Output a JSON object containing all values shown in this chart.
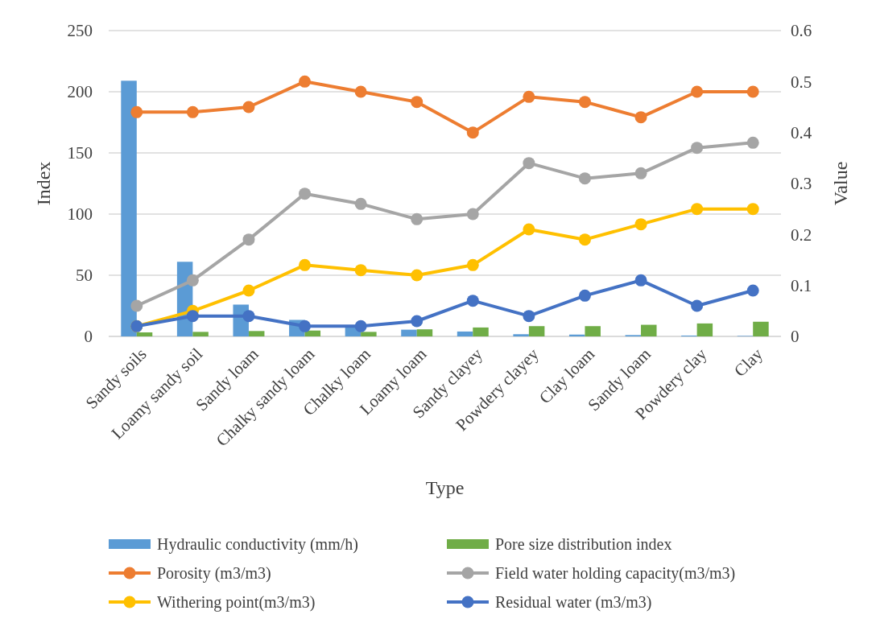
{
  "chart_data": {
    "type": "bar",
    "xlabel": "Type",
    "ylabel": "Index",
    "y2label": "Value",
    "categories": [
      "Sandy soils",
      "Loamy sandy soil",
      "Sandy loam",
      "Chalky sandy loam",
      "Chalky loam",
      "Loamy loam",
      "Sandy clayey",
      "Powdery clayey",
      "Clay loam",
      "Sandy loam",
      "Powdery clay",
      "Clay"
    ],
    "ylim": [
      0,
      250
    ],
    "yticks": [
      0,
      50,
      100,
      150,
      200,
      250
    ],
    "y2lim": [
      0,
      0.6
    ],
    "y2ticks": [
      {
        "value": 0,
        "label": "0"
      },
      {
        "value": 0.1,
        "label": "0.1"
      },
      {
        "value": 0.2,
        "label": "0.2"
      },
      {
        "value": 0.3,
        "label": "0.3"
      },
      {
        "value": 0.4,
        "label": "0.4"
      },
      {
        "value": 0.5,
        "label": "0.5"
      },
      {
        "value": 0.6,
        "label": "0.6"
      }
    ],
    "grid": "y",
    "legend": "bottom",
    "marker": "circle",
    "series": [
      {
        "name": "Hydraulic conductivity (mm/h)",
        "color": "#5b9bd5",
        "values": [
          209,
          61,
          26,
          13.5,
          8,
          5.5,
          4,
          1.8,
          1.5,
          1.1,
          0.7,
          0.4
        ]
      },
      {
        "name": "Pore size distribution index",
        "color": "#70ad47",
        "values": [
          3.3,
          3.7,
          4.4,
          4.8,
          3.7,
          5.8,
          7.3,
          8.4,
          8.4,
          9.5,
          10.6,
          12
        ]
      },
      {
        "name": "Porosity (m3/m3)",
        "type": "line",
        "axis": "y2",
        "color": "#ed7d31",
        "values": [
          0.44,
          0.44,
          0.45,
          0.5,
          0.48,
          0.46,
          0.4,
          0.47,
          0.46,
          0.43,
          0.48,
          0.48
        ]
      },
      {
        "name": "Field water holding capacity(m3/m3)",
        "type": "line",
        "axis": "y2",
        "color": "#a5a5a5",
        "values": [
          0.06,
          0.11,
          0.19,
          0.28,
          0.26,
          0.23,
          0.24,
          0.34,
          0.31,
          0.32,
          0.37,
          0.38
        ]
      },
      {
        "name": "Withering point(m3/m3)",
        "type": "line",
        "axis": "y2",
        "color": "#ffc000",
        "values": [
          0.02,
          0.05,
          0.09,
          0.14,
          0.13,
          0.12,
          0.14,
          0.21,
          0.19,
          0.22,
          0.25,
          0.25
        ]
      },
      {
        "name": "Residual water (m3/m3)",
        "type": "line",
        "axis": "y2",
        "color": "#4472c4",
        "values": [
          0.02,
          0.04,
          0.04,
          0.02,
          0.02,
          0.03,
          0.07,
          0.04,
          0.08,
          0.11,
          0.06,
          0.09
        ]
      }
    ]
  }
}
